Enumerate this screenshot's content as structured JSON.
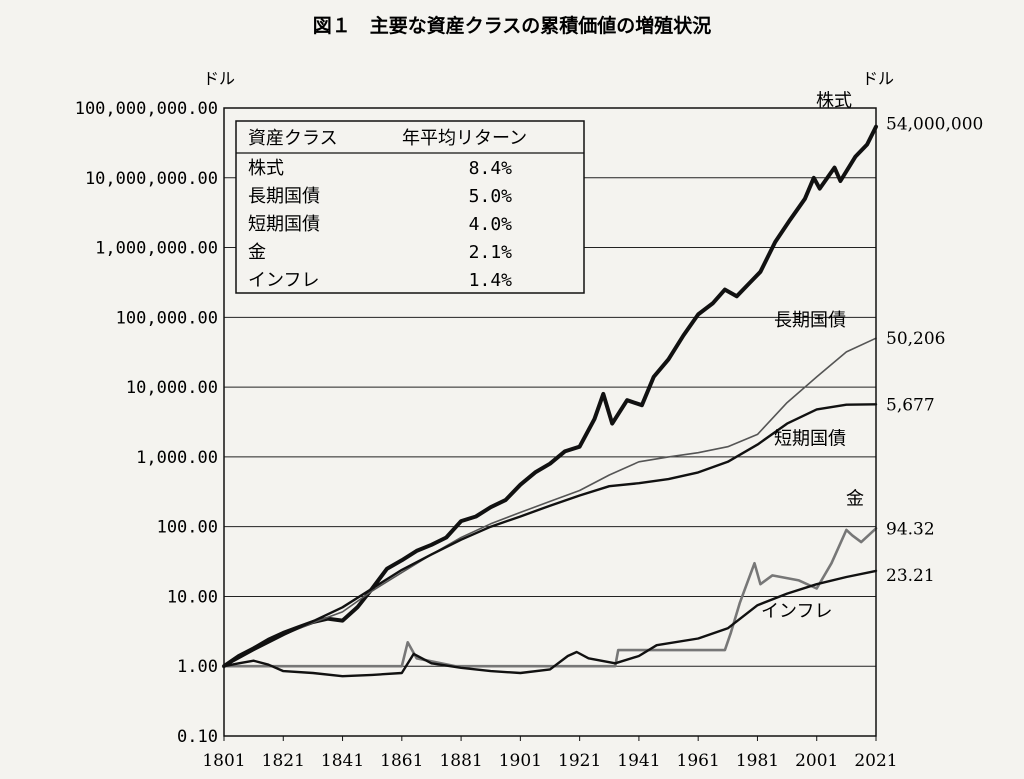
{
  "chart_data": {
    "type": "line",
    "title": "図１　主要な資産クラスの累積価値の増殖状況",
    "y_unit_left": "ドル",
    "y_unit_right": "ドル",
    "yscale": "log",
    "ylim": [
      0.1,
      100000000
    ],
    "xlim": [
      1801,
      2021
    ],
    "grid": true,
    "y_ticks": [
      0.1,
      1,
      10,
      100,
      1000,
      10000,
      100000,
      1000000,
      10000000,
      100000000
    ],
    "y_tick_labels": [
      "0.10",
      "1.00",
      "10.00",
      "100.00",
      "1,000.00",
      "10,000.00",
      "100,000.00",
      "1,000,000.00",
      "10,000,000.00",
      "100,000,000.00"
    ],
    "x_ticks": [
      1801,
      1821,
      1841,
      1861,
      1881,
      1901,
      1921,
      1941,
      1961,
      1981,
      2001,
      2021
    ],
    "x_tick_labels": [
      "1801",
      "1821",
      "1841",
      "1861",
      "1881",
      "1901",
      "1921",
      "1941",
      "1961",
      "1981",
      "2001",
      "2021"
    ],
    "legend": {
      "header_class": "資産クラス",
      "header_return": "年平均リターン",
      "rows": [
        {
          "name": "株式",
          "return": "8.4%"
        },
        {
          "name": "長期国債",
          "return": "5.0%"
        },
        {
          "name": "短期国債",
          "return": "4.0%"
        },
        {
          "name": "金",
          "return": "2.1%"
        },
        {
          "name": "インフレ",
          "return": "1.4%"
        }
      ],
      "placement": "top-left"
    },
    "series": [
      {
        "name": "株式",
        "end_label": "54,000,000",
        "color": "#111111",
        "style": "thick",
        "points": [
          [
            1801,
            1
          ],
          [
            1806,
            1.4
          ],
          [
            1811,
            1.8
          ],
          [
            1816,
            2.4
          ],
          [
            1821,
            3
          ],
          [
            1826,
            3.6
          ],
          [
            1831,
            4.3
          ],
          [
            1836,
            4.8
          ],
          [
            1841,
            4.5
          ],
          [
            1846,
            7
          ],
          [
            1851,
            13
          ],
          [
            1856,
            25
          ],
          [
            1861,
            33
          ],
          [
            1866,
            45
          ],
          [
            1871,
            55
          ],
          [
            1876,
            70
          ],
          [
            1881,
            120
          ],
          [
            1886,
            140
          ],
          [
            1891,
            190
          ],
          [
            1896,
            240
          ],
          [
            1901,
            400
          ],
          [
            1906,
            600
          ],
          [
            1911,
            800
          ],
          [
            1916,
            1200
          ],
          [
            1921,
            1400
          ],
          [
            1926,
            3500
          ],
          [
            1929,
            8000
          ],
          [
            1932,
            3000
          ],
          [
            1937,
            6500
          ],
          [
            1942,
            5500
          ],
          [
            1946,
            14000
          ],
          [
            1951,
            25000
          ],
          [
            1956,
            55000
          ],
          [
            1961,
            110000
          ],
          [
            1966,
            160000
          ],
          [
            1970,
            250000
          ],
          [
            1974,
            200000
          ],
          [
            1978,
            300000
          ],
          [
            1982,
            450000
          ],
          [
            1987,
            1200000
          ],
          [
            1992,
            2500000
          ],
          [
            1997,
            5000000
          ],
          [
            2000,
            10000000
          ],
          [
            2002,
            7000000
          ],
          [
            2007,
            14000000
          ],
          [
            2009,
            9000000
          ],
          [
            2014,
            20000000
          ],
          [
            2018,
            30000000
          ],
          [
            2021,
            54000000
          ]
        ]
      },
      {
        "name": "長期国債",
        "end_label": "50,206",
        "color": "#555555",
        "style": "thin",
        "points": [
          [
            1801,
            1
          ],
          [
            1811,
            1.7
          ],
          [
            1821,
            2.8
          ],
          [
            1831,
            4.2
          ],
          [
            1841,
            6
          ],
          [
            1851,
            12
          ],
          [
            1861,
            22
          ],
          [
            1871,
            40
          ],
          [
            1881,
            70
          ],
          [
            1891,
            110
          ],
          [
            1901,
            160
          ],
          [
            1911,
            230
          ],
          [
            1921,
            330
          ],
          [
            1931,
            550
          ],
          [
            1941,
            850
          ],
          [
            1951,
            1000
          ],
          [
            1961,
            1150
          ],
          [
            1971,
            1400
          ],
          [
            1981,
            2100
          ],
          [
            1991,
            6000
          ],
          [
            2001,
            14000
          ],
          [
            2011,
            32000
          ],
          [
            2021,
            50206
          ]
        ]
      },
      {
        "name": "短期国債",
        "end_label": "5,677",
        "color": "#111111",
        "style": "medium",
        "points": [
          [
            1801,
            1
          ],
          [
            1811,
            1.7
          ],
          [
            1821,
            2.8
          ],
          [
            1831,
            4.4
          ],
          [
            1841,
            7
          ],
          [
            1851,
            13
          ],
          [
            1861,
            24
          ],
          [
            1871,
            40
          ],
          [
            1881,
            65
          ],
          [
            1891,
            100
          ],
          [
            1901,
            140
          ],
          [
            1911,
            200
          ],
          [
            1921,
            280
          ],
          [
            1931,
            380
          ],
          [
            1941,
            420
          ],
          [
            1951,
            480
          ],
          [
            1961,
            600
          ],
          [
            1971,
            850
          ],
          [
            1981,
            1500
          ],
          [
            1991,
            3000
          ],
          [
            2001,
            4800
          ],
          [
            2011,
            5600
          ],
          [
            2021,
            5677
          ]
        ]
      },
      {
        "name": "金",
        "end_label": "94.32",
        "color": "#777777",
        "style": "medium-gray",
        "points": [
          [
            1801,
            1
          ],
          [
            1861,
            1
          ],
          [
            1863,
            2.2
          ],
          [
            1866,
            1.3
          ],
          [
            1879,
            1
          ],
          [
            1933,
            1
          ],
          [
            1934,
            1.7
          ],
          [
            1970,
            1.7
          ],
          [
            1972,
            3
          ],
          [
            1975,
            8
          ],
          [
            1980,
            30
          ],
          [
            1982,
            15
          ],
          [
            1986,
            20
          ],
          [
            1995,
            17
          ],
          [
            2001,
            13
          ],
          [
            2006,
            30
          ],
          [
            2011,
            90
          ],
          [
            2013,
            75
          ],
          [
            2016,
            60
          ],
          [
            2021,
            94.32
          ]
        ]
      },
      {
        "name": "インフレ",
        "end_label": "23.21",
        "color": "#111111",
        "style": "medium",
        "points": [
          [
            1801,
            1
          ],
          [
            1806,
            1.1
          ],
          [
            1811,
            1.2
          ],
          [
            1816,
            1.05
          ],
          [
            1821,
            0.85
          ],
          [
            1831,
            0.8
          ],
          [
            1841,
            0.72
          ],
          [
            1851,
            0.75
          ],
          [
            1861,
            0.8
          ],
          [
            1865,
            1.5
          ],
          [
            1871,
            1.1
          ],
          [
            1881,
            0.95
          ],
          [
            1891,
            0.85
          ],
          [
            1901,
            0.8
          ],
          [
            1911,
            0.9
          ],
          [
            1917,
            1.4
          ],
          [
            1920,
            1.6
          ],
          [
            1924,
            1.3
          ],
          [
            1933,
            1.1
          ],
          [
            1941,
            1.4
          ],
          [
            1947,
            2
          ],
          [
            1961,
            2.5
          ],
          [
            1971,
            3.5
          ],
          [
            1981,
            7.5
          ],
          [
            1991,
            11
          ],
          [
            2001,
            15
          ],
          [
            2011,
            19
          ],
          [
            2021,
            23.21
          ]
        ]
      }
    ]
  }
}
